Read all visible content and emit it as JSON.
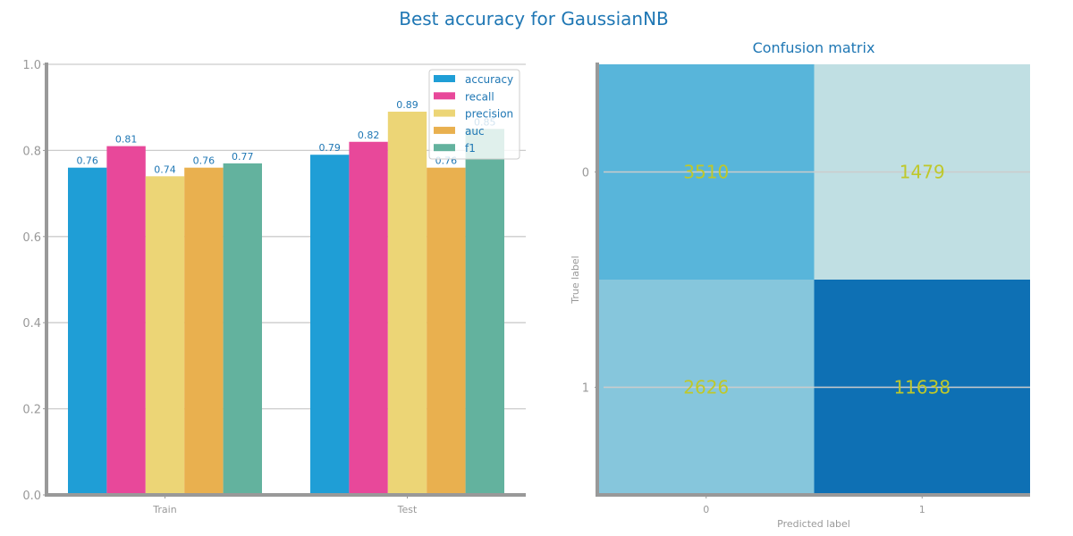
{
  "figure": {
    "title": "Best accuracy for GaussianNB"
  },
  "chart_data": [
    {
      "type": "bar",
      "title": "",
      "xlabel": "",
      "ylabel": "",
      "ylim": [
        0,
        1
      ],
      "yticks": [
        "0.0",
        "0.2",
        "0.4",
        "0.6",
        "0.8",
        "1.0"
      ],
      "categories": [
        "Train",
        "Test"
      ],
      "grid": true,
      "legend_position": "top-right",
      "series": [
        {
          "name": "accuracy",
          "color": "#1f9ed6",
          "values": [
            0.76,
            0.79
          ],
          "labels": [
            "0.76",
            "0.79"
          ]
        },
        {
          "name": "recall",
          "color": "#e8489a",
          "values": [
            0.81,
            0.82
          ],
          "labels": [
            "0.81",
            "0.82"
          ]
        },
        {
          "name": "precision",
          "color": "#ecd576",
          "values": [
            0.74,
            0.89
          ],
          "labels": [
            "0.74",
            "0.89"
          ]
        },
        {
          "name": "auc",
          "color": "#e9b04f",
          "values": [
            0.76,
            0.76
          ],
          "labels": [
            "0.76",
            "0.76"
          ]
        },
        {
          "name": "f1",
          "color": "#63b29e",
          "values": [
            0.77,
            0.85
          ],
          "labels": [
            "0.77",
            "0.85"
          ]
        }
      ]
    },
    {
      "type": "heatmap",
      "title": "Confusion matrix",
      "xlabel": "Predicted label",
      "ylabel": "True label",
      "x_categories": [
        "0",
        "1"
      ],
      "y_categories": [
        "0",
        "1"
      ],
      "values": [
        [
          3510,
          1479
        ],
        [
          2626,
          11638
        ]
      ],
      "labels": [
        [
          "3510",
          "1479"
        ],
        [
          "2626",
          "11638"
        ]
      ],
      "colors": [
        [
          "#58b5da",
          "#c0dfe3"
        ],
        [
          "#86c6dc",
          "#0e70b4"
        ]
      ]
    }
  ]
}
